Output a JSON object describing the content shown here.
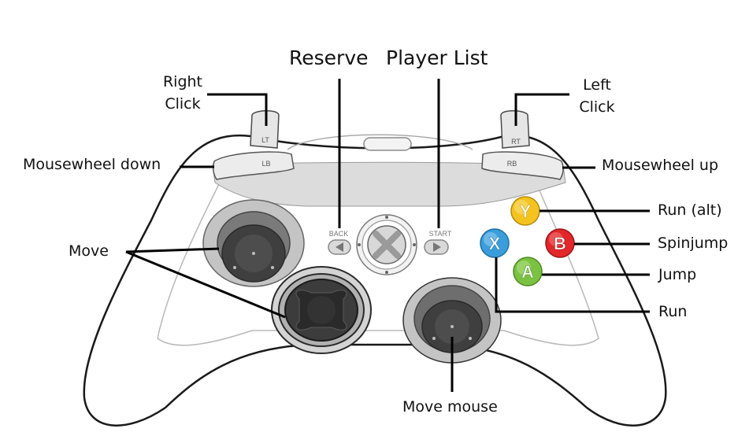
{
  "labels": {
    "reserve": "Reserve",
    "player_list": "Player List",
    "lt_line1": "Right",
    "lt_line2": "Click",
    "rt_line1": "Left",
    "rt_line2": "Click",
    "lb": "Mousewheel down",
    "rb": "Mousewheel up",
    "move": "Move",
    "y_button": "Run (alt)",
    "b_button": "Spinjump",
    "a_button": "Jump",
    "x_button": "Run",
    "right_stick": "Move mouse"
  },
  "controller": {
    "lt": "LT",
    "rt": "RT",
    "lb": "LB",
    "rb": "RB",
    "back": "BACK",
    "start": "START",
    "y": "Y",
    "b": "B",
    "a": "A",
    "x": "X"
  },
  "colors": {
    "y": "#f4c320",
    "b": "#e2262a",
    "a": "#7cc242",
    "x": "#3b9ddb",
    "body_outline": "#1a1a1a",
    "body_fill": "#ffffff",
    "bumper_band": "#dcdcdc"
  }
}
